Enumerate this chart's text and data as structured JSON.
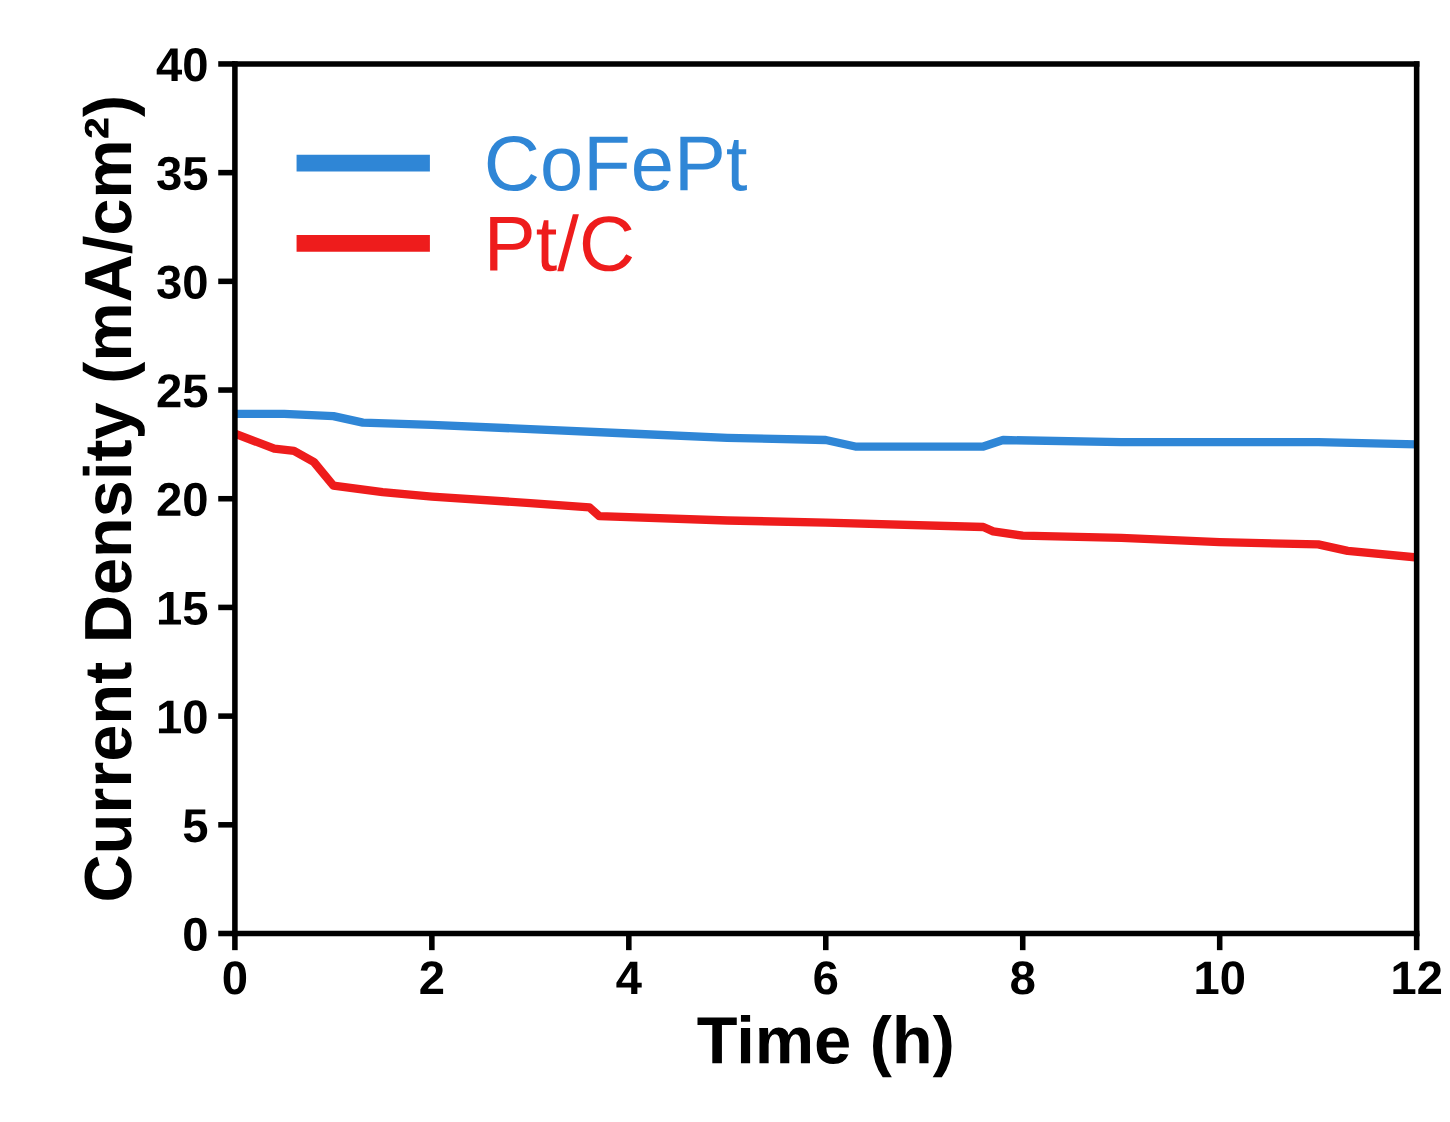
{
  "chart_data": {
    "type": "line",
    "xlabel": "Time (h)",
    "ylabel": "Current Density (mA/cm²)",
    "xlim": [
      0,
      12
    ],
    "xticks": [
      0,
      2,
      4,
      6,
      8,
      10,
      12
    ],
    "ylim": [
      0,
      40
    ],
    "yticks": [
      0,
      5,
      10,
      15,
      20,
      25,
      30,
      35,
      40
    ],
    "legend": "top left",
    "grid": false,
    "series": [
      {
        "name": "CoFePt",
        "color": "#2f86d6",
        "x": [
          0,
          0.5,
          1.0,
          1.3,
          2,
          3,
          4,
          5,
          6,
          6.3,
          7,
          7.6,
          7.8,
          9,
          10,
          11,
          12
        ],
        "values": [
          23.9,
          23.9,
          23.8,
          23.5,
          23.4,
          23.2,
          23.0,
          22.8,
          22.7,
          22.4,
          22.4,
          22.4,
          22.7,
          22.6,
          22.6,
          22.6,
          22.5
        ]
      },
      {
        "name": "Pt/C",
        "color": "#ee1c1c",
        "x": [
          0,
          0.4,
          0.6,
          0.8,
          1.0,
          1.5,
          2,
          3,
          3.6,
          3.7,
          5,
          6,
          7.6,
          7.7,
          8,
          9,
          10,
          11,
          11.3,
          12
        ],
        "values": [
          23.0,
          22.3,
          22.2,
          21.7,
          20.6,
          20.3,
          20.1,
          19.8,
          19.6,
          19.2,
          19.0,
          18.9,
          18.7,
          18.5,
          18.3,
          18.2,
          18.0,
          17.9,
          17.6,
          17.3
        ]
      }
    ]
  }
}
